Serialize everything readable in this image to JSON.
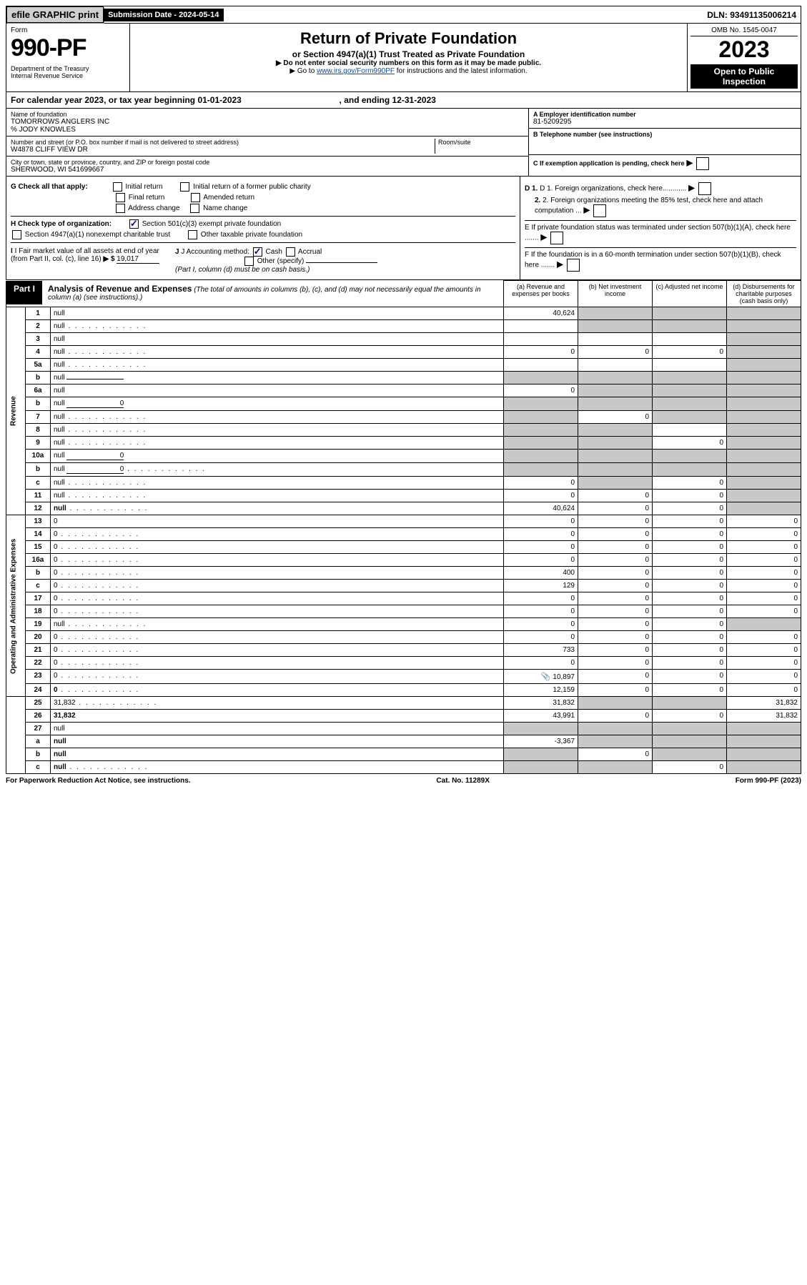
{
  "topbar": {
    "efile": "efile GRAPHIC print",
    "sub_date": "Submission Date - 2024-05-14",
    "dln": "DLN: 93491135006214"
  },
  "header": {
    "form": "Form",
    "form_num": "990-PF",
    "dept": "Department of the Treasury\nInternal Revenue Service",
    "title": "Return of Private Foundation",
    "subtitle": "or Section 4947(a)(1) Trust Treated as Private Foundation",
    "note1": "▶ Do not enter social security numbers on this form as it may be made public.",
    "note2_pre": "▶ Go to ",
    "note2_link": "www.irs.gov/Form990PF",
    "note2_post": " for instructions and the latest information.",
    "omb": "OMB No. 1545-0047",
    "year": "2023",
    "open": "Open to Public Inspection"
  },
  "cal_year": {
    "pre": "For calendar year 2023, or tax year beginning ",
    "begin": "01-01-2023",
    "mid": " , and ending ",
    "end": "12-31-2023"
  },
  "info": {
    "name_lbl": "Name of foundation",
    "name": "TOMORROWS ANGLERS INC",
    "care_of": "% JODY KNOWLES",
    "addr_lbl": "Number and street (or P.O. box number if mail is not delivered to street address)",
    "addr": "W4878 CLIFF VIEW DR",
    "room_lbl": "Room/suite",
    "city_lbl": "City or town, state or province, country, and ZIP or foreign postal code",
    "city": "SHERWOOD, WI  541699667",
    "a_lbl": "A Employer identification number",
    "a_val": "81-5209295",
    "b_lbl": "B Telephone number (see instructions)",
    "c_lbl": "C If exemption application is pending, check here",
    "d1": "D 1. Foreign organizations, check here............",
    "d2": "2. Foreign organizations meeting the 85% test, check here and attach computation ...",
    "e_lbl": "E  If private foundation status was terminated under section 507(b)(1)(A), check here .......",
    "f_lbl": "F  If the foundation is in a 60-month termination under section 507(b)(1)(B), check here .......",
    "g_lbl": "G Check all that apply:",
    "g_initial": "Initial return",
    "g_initial_former": "Initial return of a former public charity",
    "g_final": "Final return",
    "g_amended": "Amended return",
    "g_addr": "Address change",
    "g_name": "Name change",
    "h_lbl": "H Check type of organization:",
    "h_501c3": "Section 501(c)(3) exempt private foundation",
    "h_4947": "Section 4947(a)(1) nonexempt charitable trust",
    "h_other_tax": "Other taxable private foundation",
    "i_lbl": "I Fair market value of all assets at end of year (from Part II, col. (c), line 16)",
    "i_val": "19,017",
    "j_lbl": "J Accounting method:",
    "j_cash": "Cash",
    "j_accrual": "Accrual",
    "j_other": "Other (specify)",
    "j_note": "(Part I, column (d) must be on cash basis.)"
  },
  "part1": {
    "label": "Part I",
    "title": "Analysis of Revenue and Expenses",
    "note": "(The total of amounts in columns (b), (c), and (d) may not necessarily equal the amounts in column (a) (see instructions).)",
    "col_a": "(a)   Revenue and expenses per books",
    "col_b": "(b)   Net investment income",
    "col_c": "(c)   Adjusted net income",
    "col_d": "(d)   Disbursements for charitable purposes (cash basis only)"
  },
  "sides": {
    "revenue": "Revenue",
    "expenses": "Operating and Administrative Expenses"
  },
  "rows": [
    {
      "n": "1",
      "d": null,
      "a": "40,624",
      "b": null,
      "c": null,
      "sb": true,
      "sc": true,
      "sd": true
    },
    {
      "n": "2",
      "d": null,
      "dots": true,
      "a": "",
      "b": null,
      "c": null,
      "sb": true,
      "sc": true,
      "sd": true,
      "noborder_a": true
    },
    {
      "n": "3",
      "d": null,
      "a": "",
      "b": "",
      "c": "",
      "sd": true
    },
    {
      "n": "4",
      "d": null,
      "dots": true,
      "a": "0",
      "b": "0",
      "c": "0",
      "sd": true
    },
    {
      "n": "5a",
      "d": null,
      "dots": true,
      "a": "",
      "b": "",
      "c": "",
      "sd": true
    },
    {
      "n": "b",
      "d": null,
      "inline": "",
      "a": null,
      "b": null,
      "c": null,
      "sa": true,
      "sb": true,
      "sc": true,
      "sd": true
    },
    {
      "n": "6a",
      "d": null,
      "a": "0",
      "b": null,
      "c": null,
      "sb": true,
      "sc": true,
      "sd": true
    },
    {
      "n": "b",
      "d": null,
      "inline": "0",
      "a": null,
      "b": null,
      "c": null,
      "sa": true,
      "sb": true,
      "sc": true,
      "sd": true
    },
    {
      "n": "7",
      "d": null,
      "dots": true,
      "a": null,
      "b": "0",
      "c": null,
      "sa": true,
      "sc": true,
      "sd": true
    },
    {
      "n": "8",
      "d": null,
      "dots": true,
      "a": null,
      "b": null,
      "c": "",
      "sa": true,
      "sb": true,
      "sd": true
    },
    {
      "n": "9",
      "d": null,
      "dots": true,
      "a": null,
      "b": null,
      "c": "0",
      "sa": true,
      "sb": true,
      "sd": true
    },
    {
      "n": "10a",
      "d": null,
      "inline": "0",
      "a": null,
      "b": null,
      "c": null,
      "sa": true,
      "sb": true,
      "sc": true,
      "sd": true
    },
    {
      "n": "b",
      "d": null,
      "dots": true,
      "inline": "0",
      "a": null,
      "b": null,
      "c": null,
      "sa": true,
      "sb": true,
      "sc": true,
      "sd": true
    },
    {
      "n": "c",
      "d": null,
      "dots": true,
      "a": "0",
      "b": null,
      "c": "0",
      "sb": true,
      "sd": true
    },
    {
      "n": "11",
      "d": null,
      "dots": true,
      "a": "0",
      "b": "0",
      "c": "0",
      "sd": true
    },
    {
      "n": "12",
      "d": null,
      "dots": true,
      "bold": true,
      "a": "40,624",
      "b": "0",
      "c": "0",
      "sd": true
    },
    {
      "n": "13",
      "d": "0",
      "a": "0",
      "b": "0",
      "c": "0"
    },
    {
      "n": "14",
      "d": "0",
      "dots": true,
      "a": "0",
      "b": "0",
      "c": "0"
    },
    {
      "n": "15",
      "d": "0",
      "dots": true,
      "a": "0",
      "b": "0",
      "c": "0"
    },
    {
      "n": "16a",
      "d": "0",
      "dots": true,
      "a": "0",
      "b": "0",
      "c": "0"
    },
    {
      "n": "b",
      "d": "0",
      "dots": true,
      "a": "400",
      "b": "0",
      "c": "0"
    },
    {
      "n": "c",
      "d": "0",
      "dots": true,
      "a": "129",
      "b": "0",
      "c": "0"
    },
    {
      "n": "17",
      "d": "0",
      "dots": true,
      "a": "0",
      "b": "0",
      "c": "0"
    },
    {
      "n": "18",
      "d": "0",
      "dots": true,
      "a": "0",
      "b": "0",
      "c": "0"
    },
    {
      "n": "19",
      "d": null,
      "dots": true,
      "a": "0",
      "b": "0",
      "c": "0",
      "sd": true
    },
    {
      "n": "20",
      "d": "0",
      "dots": true,
      "a": "0",
      "b": "0",
      "c": "0"
    },
    {
      "n": "21",
      "d": "0",
      "dots": true,
      "a": "733",
      "b": "0",
      "c": "0"
    },
    {
      "n": "22",
      "d": "0",
      "dots": true,
      "a": "0",
      "b": "0",
      "c": "0"
    },
    {
      "n": "23",
      "d": "0",
      "dots": true,
      "attach": true,
      "a": "10,897",
      "b": "0",
      "c": "0"
    },
    {
      "n": "24",
      "d": "0",
      "dots": true,
      "bold": true,
      "a": "12,159",
      "b": "0",
      "c": "0"
    },
    {
      "n": "25",
      "d": "31,832",
      "dots": true,
      "a": "31,832",
      "b": null,
      "c": null,
      "sb": true,
      "sc": true
    },
    {
      "n": "26",
      "d": "31,832",
      "bold": true,
      "a": "43,991",
      "b": "0",
      "c": "0"
    },
    {
      "n": "27",
      "d": null,
      "a": null,
      "b": null,
      "c": null,
      "sa": true,
      "sb": true,
      "sc": true,
      "sd": true
    },
    {
      "n": "a",
      "d": null,
      "bold": true,
      "a": "-3,367",
      "b": null,
      "c": null,
      "sb": true,
      "sc": true,
      "sd": true
    },
    {
      "n": "b",
      "d": null,
      "bold": true,
      "a": null,
      "b": "0",
      "c": null,
      "sa": true,
      "sc": true,
      "sd": true
    },
    {
      "n": "c",
      "d": null,
      "dots": true,
      "bold": true,
      "a": null,
      "b": null,
      "c": "0",
      "sa": true,
      "sb": true,
      "sd": true
    }
  ],
  "footer": {
    "left": "For Paperwork Reduction Act Notice, see instructions.",
    "mid": "Cat. No. 11289X",
    "right": "Form 990-PF (2023)"
  }
}
